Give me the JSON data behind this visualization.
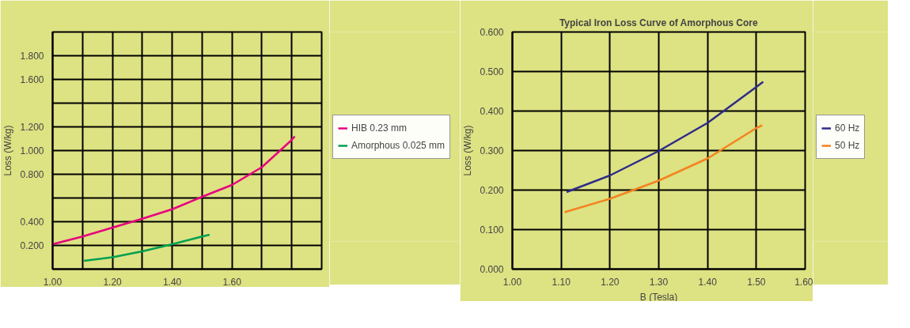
{
  "chart_data": [
    {
      "type": "line",
      "ylabel": "Loss (W/kg)",
      "xlim": [
        1.0,
        1.9
      ],
      "ylim": [
        0,
        2.0
      ],
      "xticks": [
        {
          "value": 1.0,
          "label": "1.00"
        },
        {
          "value": 1.1,
          "label": null
        },
        {
          "value": 1.2,
          "label": "1.20"
        },
        {
          "value": 1.3,
          "label": null
        },
        {
          "value": 1.4,
          "label": "1.40"
        },
        {
          "value": 1.5,
          "label": null
        },
        {
          "value": 1.6,
          "label": "1.60"
        },
        {
          "value": 1.7,
          "label": null
        },
        {
          "value": 1.8,
          "label": null
        }
      ],
      "yticks": [
        {
          "value": 0.2,
          "label": "0.200"
        },
        {
          "value": 0.4,
          "label": "0.400"
        },
        {
          "value": 0.6,
          "label": null
        },
        {
          "value": 0.8,
          "label": "0.800"
        },
        {
          "value": 1.0,
          "label": "1.000"
        },
        {
          "value": 1.2,
          "label": "1.200"
        },
        {
          "value": 1.4,
          "label": null
        },
        {
          "value": 1.6,
          "label": "1.600"
        },
        {
          "value": 1.8,
          "label": "1.800"
        }
      ],
      "grid": true,
      "legend": "right",
      "series": [
        {
          "name": "HIB 0.23 mm",
          "color": "#e6007e",
          "x": [
            1.0,
            1.1,
            1.2,
            1.3,
            1.4,
            1.5,
            1.6,
            1.7,
            1.8,
            1.81
          ],
          "values": [
            0.21,
            0.275,
            0.35,
            0.425,
            0.505,
            0.61,
            0.71,
            0.86,
            1.09,
            1.12
          ]
        },
        {
          "name": "Amorphous 0.025 mm",
          "color": "#00a050",
          "x": [
            1.105,
            1.2,
            1.3,
            1.4,
            1.5,
            1.525
          ],
          "values": [
            0.07,
            0.1,
            0.15,
            0.21,
            0.275,
            0.29
          ]
        }
      ]
    },
    {
      "type": "line",
      "title": "Typical Iron Loss Curve of Amorphous Core",
      "xlabel": "B (Tesla)",
      "ylabel": "Loss (W/kg)",
      "xlim": [
        1.0,
        1.6
      ],
      "ylim": [
        0,
        0.6
      ],
      "xticks": [
        {
          "value": 1.0,
          "label": "1.00"
        },
        {
          "value": 1.1,
          "label": "1.10"
        },
        {
          "value": 1.2,
          "label": "1.20"
        },
        {
          "value": 1.3,
          "label": "1.30"
        },
        {
          "value": 1.4,
          "label": "1.40"
        },
        {
          "value": 1.5,
          "label": "1.50"
        },
        {
          "value": 1.6,
          "label": "1.60"
        }
      ],
      "yticks": [
        {
          "value": 0,
          "label": "0.000"
        },
        {
          "value": 0.1,
          "label": "0.100"
        },
        {
          "value": 0.2,
          "label": "0.200"
        },
        {
          "value": 0.3,
          "label": "0.300"
        },
        {
          "value": 0.4,
          "label": "0.400"
        },
        {
          "value": 0.5,
          "label": "0.500"
        },
        {
          "value": 0.6,
          "label": "0.600"
        }
      ],
      "grid": true,
      "legend": "right",
      "series": [
        {
          "name": "60 Hz",
          "color": "#2e2a8a",
          "x": [
            1.111,
            1.2,
            1.3,
            1.4,
            1.5,
            1.514
          ],
          "values": [
            0.195,
            0.237,
            0.299,
            0.37,
            0.461,
            0.474
          ]
        },
        {
          "name": "50 Hz",
          "color": "#f58220",
          "x": [
            1.107,
            1.2,
            1.3,
            1.4,
            1.5,
            1.512
          ],
          "values": [
            0.144,
            0.178,
            0.224,
            0.28,
            0.357,
            0.364
          ]
        }
      ]
    }
  ]
}
